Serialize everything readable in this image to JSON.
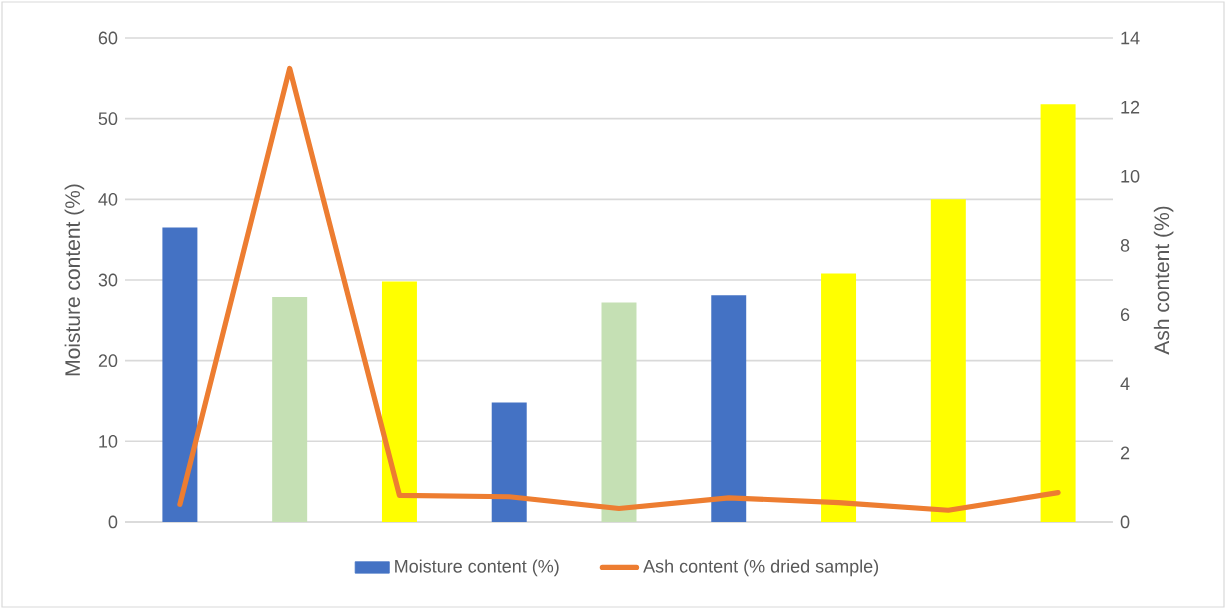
{
  "chart_data": {
    "type": "bar",
    "ylabel": "Moisture content (%)",
    "y2label": "Ash content (%)",
    "categories": [
      null,
      null,
      null,
      null,
      null,
      null,
      null,
      null,
      null
    ],
    "series": [
      {
        "name": "Moisture content (%)",
        "color": "#4472c4",
        "colors": [
          "#4472c4",
          "#c5e0b4",
          "#ffff00",
          "#4472c4",
          "#c5e0b4",
          "#4472c4",
          "#ffff00",
          "#ffff00",
          "#ffff00"
        ],
        "values": [
          36.5,
          27.9,
          29.8,
          14.8,
          27.2,
          28.1,
          30.8,
          40.0,
          51.8
        ]
      },
      {
        "name": "Ash content (% dried sample)",
        "type": "line",
        "axis": "y2",
        "color": "#ed7d31",
        "values": [
          0.51,
          13.12,
          0.77,
          0.73,
          0.39,
          0.7,
          0.56,
          0.34,
          0.85
        ]
      }
    ],
    "ylim": [
      0,
      60
    ],
    "yticks": [
      0,
      10,
      20,
      30,
      40,
      50,
      60
    ],
    "y2lim": [
      0,
      14
    ],
    "y2ticks": [
      0,
      2,
      4,
      6,
      8,
      10,
      12,
      14
    ],
    "grid": "y",
    "legend": "bottom"
  }
}
